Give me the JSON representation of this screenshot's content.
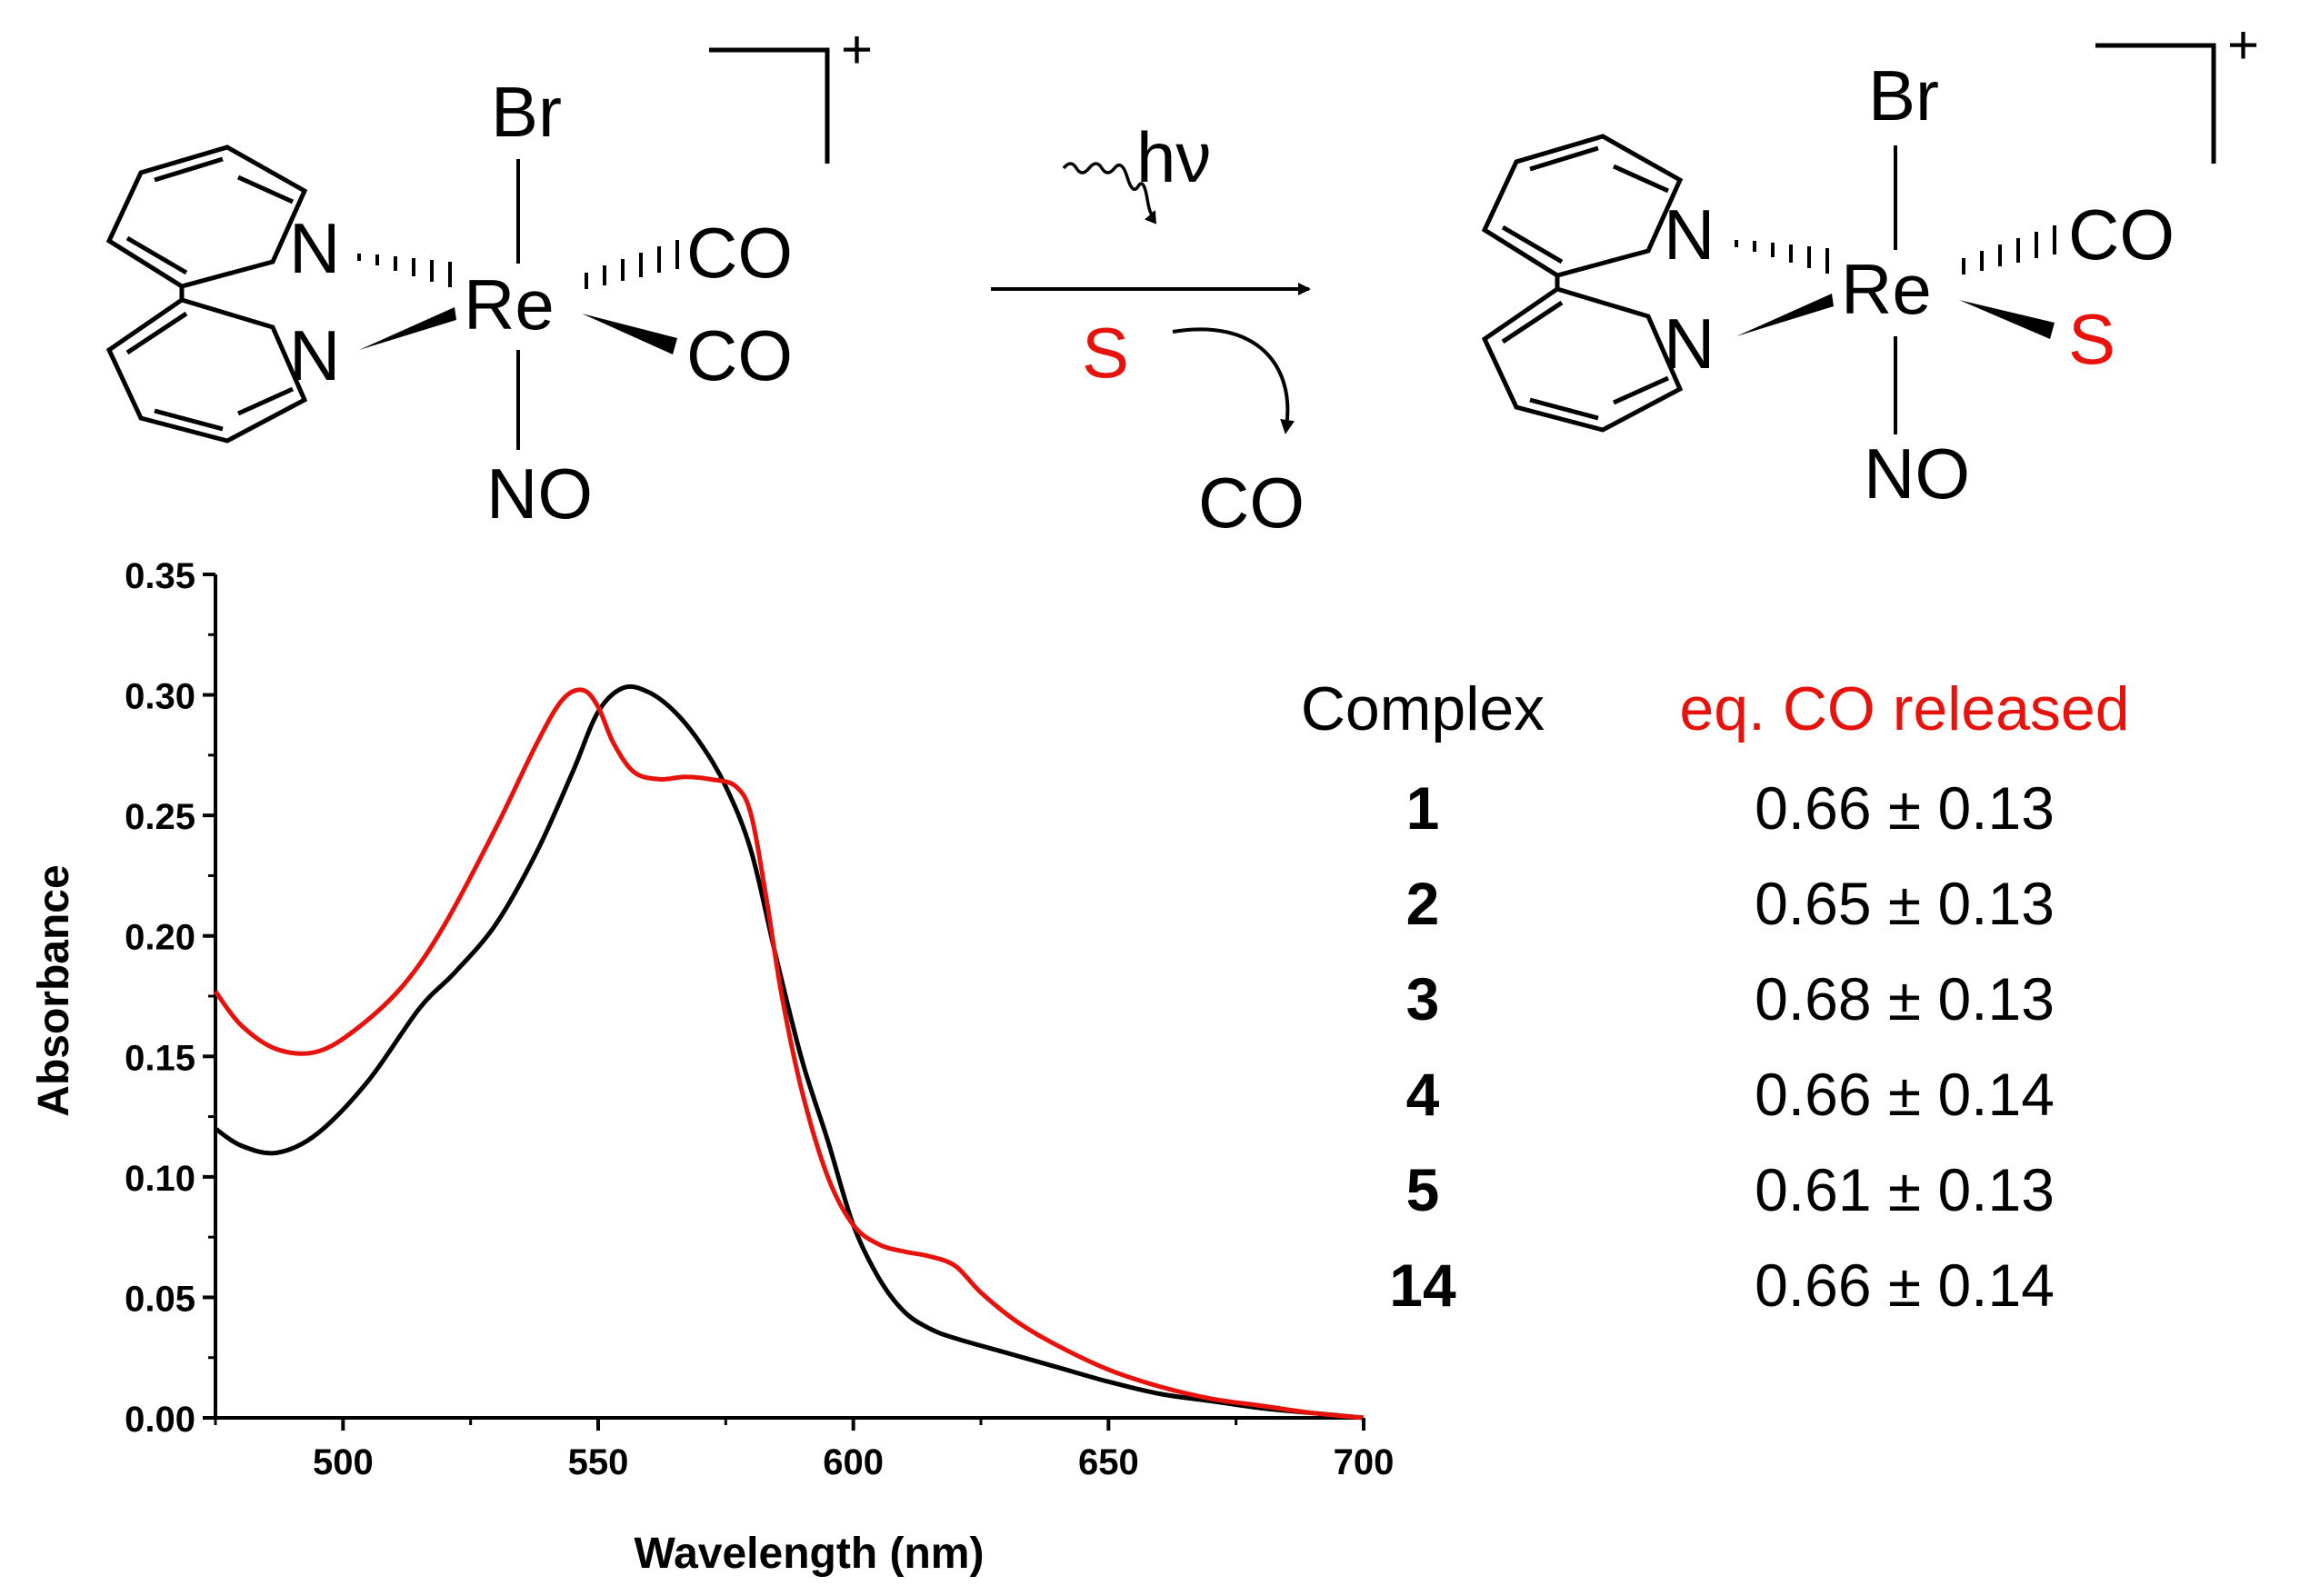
{
  "scheme": {
    "reactant": {
      "apical_top": "Br",
      "apical_bottom": "NO",
      "metal": "Re",
      "n_upper": "N",
      "n_lower": "N",
      "ligand_1": "CO",
      "ligand_2": "CO",
      "charge": "+"
    },
    "arrow": {
      "light": "hν",
      "reagent": "S",
      "released": "CO"
    },
    "product": {
      "apical_top": "Br",
      "apical_bottom": "NO",
      "metal": "Re",
      "n_upper": "N",
      "n_lower": "N",
      "ligand_1": "CO",
      "ligand_2": "S",
      "charge": "+"
    }
  },
  "table": {
    "header_complex": "Complex",
    "header_co": "eq. CO released",
    "rows": [
      {
        "complex": "1",
        "value": "0.66 ± 0.13"
      },
      {
        "complex": "2",
        "value": "0.65 ± 0.13"
      },
      {
        "complex": "3",
        "value": "0.68 ± 0.13"
      },
      {
        "complex": "4",
        "value": "0.66 ± 0.14"
      },
      {
        "complex": "5",
        "value": "0.61 ± 0.13"
      },
      {
        "complex": "14",
        "value": "0.66 ± 0.14"
      }
    ]
  },
  "colors": {
    "black_series": "#000000",
    "red_series": "#e8120c",
    "red_text": "#e8120c"
  },
  "chart_data": {
    "type": "line",
    "xlabel": "Wavelength (nm)",
    "ylabel": "Absorbance",
    "xlim": [
      475,
      700
    ],
    "ylim": [
      0,
      0.35
    ],
    "xticks": [
      "500",
      "550",
      "600",
      "650",
      "700"
    ],
    "xtick_values": [
      500,
      550,
      600,
      650,
      700
    ],
    "yticks": [
      "0.00",
      "0.05",
      "0.10",
      "0.15",
      "0.20",
      "0.25",
      "0.30",
      "0.35"
    ],
    "ytick_values": [
      0,
      0.05,
      0.1,
      0.15,
      0.2,
      0.25,
      0.3,
      0.35
    ],
    "grid": false,
    "series": [
      {
        "color": "#000000",
        "x": [
          475,
          480,
          487,
          495,
          505,
          515,
          522,
          530,
          538,
          545,
          550,
          555,
          560,
          565,
          570,
          575,
          580,
          585,
          590,
          595,
          600,
          605,
          610,
          615,
          620,
          630,
          640,
          650,
          660,
          670,
          680,
          690,
          700
        ],
        "y": [
          0.12,
          0.113,
          0.11,
          0.118,
          0.14,
          0.17,
          0.185,
          0.205,
          0.235,
          0.268,
          0.293,
          0.303,
          0.301,
          0.293,
          0.28,
          0.262,
          0.235,
          0.19,
          0.148,
          0.115,
          0.08,
          0.058,
          0.044,
          0.037,
          0.033,
          0.027,
          0.021,
          0.015,
          0.01,
          0.007,
          0.004,
          0.002,
          0.0
        ]
      },
      {
        "color": "#e8120c",
        "x": [
          475,
          480,
          487,
          495,
          503,
          512,
          520,
          530,
          538,
          543,
          547,
          550,
          553,
          557,
          562,
          567,
          572,
          577,
          580,
          583,
          586,
          590,
          595,
          600,
          605,
          610,
          615,
          620,
          625,
          632,
          640,
          650,
          660,
          670,
          680,
          690,
          700
        ],
        "y": [
          0.177,
          0.163,
          0.153,
          0.152,
          0.162,
          0.18,
          0.205,
          0.245,
          0.28,
          0.298,
          0.302,
          0.295,
          0.28,
          0.268,
          0.265,
          0.266,
          0.265,
          0.262,
          0.25,
          0.215,
          0.175,
          0.135,
          0.1,
          0.08,
          0.072,
          0.069,
          0.067,
          0.063,
          0.052,
          0.04,
          0.03,
          0.02,
          0.013,
          0.008,
          0.005,
          0.002,
          0.0
        ]
      }
    ]
  }
}
